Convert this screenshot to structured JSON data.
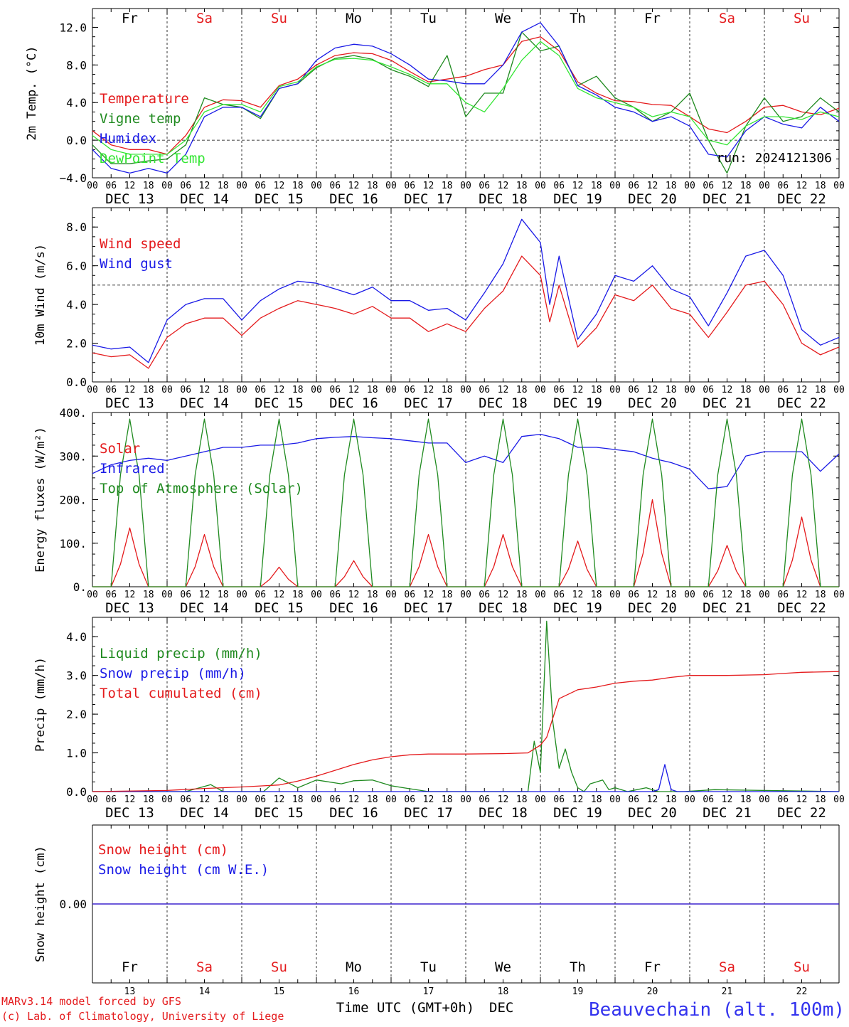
{
  "colors": {
    "red": "#e41a1c",
    "darkgreen": "#1f8a1f",
    "blue": "#1a1ae6",
    "lightgreen": "#33e633",
    "weekend": "#e41a1c",
    "weekday": "#000000",
    "footer_left": "#e41a1c",
    "footer_right": "#3333ee"
  },
  "days": {
    "top_labels": [
      "Fr",
      "Sa",
      "Su",
      "Mo",
      "Tu",
      "We",
      "Th",
      "Fr",
      "Sa",
      "Su"
    ],
    "weekend_flags": [
      false,
      true,
      true,
      false,
      false,
      false,
      false,
      false,
      true,
      true
    ],
    "date_labels": [
      "DEC 13",
      "DEC 14",
      "DEC 15",
      "DEC 16",
      "DEC 17",
      "DEC 18",
      "DEC 19",
      "DEC 20",
      "DEC 21",
      "DEC 22"
    ],
    "hour_labels": [
      "00",
      "06",
      "12",
      "18"
    ],
    "final_hour": "00",
    "day_numbers": [
      "13",
      "14",
      "15",
      "16",
      "17",
      "18",
      "19",
      "20",
      "21",
      "22"
    ]
  },
  "footer": {
    "model_line1": "MARv3.14 model forced by GFS",
    "model_line2": "(c) Lab. of Climatology, University of Liege",
    "xlabel": "Time UTC (GMT+0h)",
    "month": "DEC",
    "station": "Beauvechain (alt. 100m)"
  },
  "chart_data": [
    {
      "type": "line",
      "panel": "temperature",
      "ylabel": "2m Temp. (°C)",
      "ylim": [
        -4.0,
        14.0
      ],
      "yticks": [
        -4.0,
        0.0,
        4.0,
        8.0,
        12.0
      ],
      "ytick_labels": [
        "−4.0",
        "0.0",
        "4.0",
        "8.0",
        "12.0"
      ],
      "reference_line": 0.0,
      "annotation": "run: 2024121306",
      "x_unit": "hours since DEC 13 00 UTC",
      "series": [
        {
          "name": "Temperature",
          "color": "red",
          "x": [
            0,
            6,
            12,
            18,
            24,
            30,
            36,
            42,
            48,
            54,
            60,
            66,
            72,
            78,
            84,
            90,
            96,
            102,
            108,
            114,
            120,
            126,
            132,
            138,
            144,
            150,
            156,
            162,
            168,
            174,
            180,
            186,
            192,
            198,
            204,
            210,
            216,
            222,
            228,
            234,
            240
          ],
          "y": [
            1.0,
            -0.5,
            -1.0,
            -1.0,
            -1.5,
            0.5,
            3.5,
            4.3,
            4.2,
            3.5,
            5.8,
            6.5,
            8.0,
            9.0,
            9.3,
            9.2,
            8.5,
            7.3,
            6.2,
            6.5,
            6.8,
            7.5,
            8.0,
            10.5,
            11.0,
            9.5,
            6.2,
            5.0,
            4.2,
            4.1,
            3.8,
            3.7,
            2.5,
            1.2,
            0.8,
            2.0,
            3.5,
            3.7,
            3.0,
            2.7,
            3.4
          ]
        },
        {
          "name": "Vigne temp",
          "color": "darkgreen",
          "x": [
            0,
            6,
            12,
            18,
            24,
            30,
            36,
            42,
            48,
            54,
            60,
            66,
            72,
            78,
            84,
            90,
            96,
            102,
            108,
            114,
            120,
            126,
            132,
            138,
            144,
            150,
            156,
            162,
            168,
            174,
            180,
            186,
            192,
            198,
            204,
            210,
            216,
            222,
            228,
            234,
            240
          ],
          "y": [
            -0.5,
            -2.5,
            -2.5,
            -2.2,
            -2.0,
            -0.5,
            4.5,
            3.8,
            3.5,
            2.3,
            5.5,
            6.0,
            7.7,
            8.7,
            9.0,
            8.6,
            7.5,
            6.8,
            5.7,
            9.0,
            2.5,
            5.0,
            5.0,
            11.5,
            9.5,
            10.0,
            5.8,
            6.8,
            4.5,
            3.5,
            2.0,
            3.0,
            5.0,
            0.0,
            -3.5,
            1.5,
            4.5,
            2.0,
            2.5,
            4.5,
            3.0
          ]
        },
        {
          "name": "Humidex",
          "color": "blue",
          "x": [
            0,
            6,
            12,
            18,
            24,
            30,
            36,
            42,
            48,
            54,
            60,
            66,
            72,
            78,
            84,
            90,
            96,
            102,
            108,
            114,
            120,
            126,
            132,
            138,
            144,
            150,
            156,
            162,
            168,
            174,
            180,
            186,
            192,
            198,
            204,
            210,
            216,
            222,
            228,
            234,
            240
          ],
          "y": [
            -1.0,
            -3.0,
            -3.5,
            -3.0,
            -3.5,
            -1.5,
            2.5,
            3.5,
            3.5,
            2.5,
            5.5,
            6.0,
            8.5,
            9.8,
            10.2,
            10.0,
            9.2,
            8.0,
            6.5,
            6.3,
            6.0,
            6.0,
            8.0,
            11.5,
            12.5,
            10.0,
            5.8,
            4.8,
            3.5,
            3.0,
            2.0,
            2.5,
            1.5,
            -1.5,
            -1.8,
            1.0,
            2.5,
            1.7,
            1.3,
            3.5,
            2.0
          ]
        },
        {
          "name": "DewPoint Temp",
          "color": "lightgreen",
          "x": [
            0,
            6,
            12,
            18,
            24,
            30,
            36,
            42,
            48,
            54,
            60,
            66,
            72,
            78,
            84,
            90,
            96,
            102,
            108,
            114,
            120,
            126,
            132,
            138,
            144,
            150,
            156,
            162,
            168,
            174,
            180,
            186,
            192,
            198,
            204,
            210,
            216,
            222,
            228,
            234,
            240
          ],
          "y": [
            0.5,
            -1.0,
            -1.5,
            -1.5,
            -1.5,
            0.0,
            3.0,
            3.8,
            3.8,
            3.0,
            5.7,
            6.2,
            7.8,
            8.6,
            8.7,
            8.5,
            7.8,
            7.0,
            6.0,
            6.0,
            4.0,
            3.0,
            5.5,
            8.5,
            10.5,
            9.0,
            5.5,
            4.5,
            4.0,
            3.5,
            2.5,
            3.0,
            2.5,
            0.0,
            -0.5,
            1.5,
            2.5,
            2.5,
            2.2,
            3.0,
            2.5
          ]
        }
      ]
    },
    {
      "type": "line",
      "panel": "wind",
      "ylabel": "10m Wind (m/s)",
      "ylim": [
        0.0,
        9.0
      ],
      "yticks": [
        0.0,
        2.0,
        4.0,
        6.0,
        8.0
      ],
      "ytick_labels": [
        "0.0",
        "2.0",
        "4.0",
        "6.0",
        "8.0"
      ],
      "reference_line": 5.0,
      "series": [
        {
          "name": "Wind speed",
          "color": "red",
          "x": [
            0,
            6,
            12,
            18,
            24,
            30,
            36,
            42,
            48,
            54,
            60,
            66,
            72,
            78,
            84,
            90,
            96,
            102,
            108,
            114,
            120,
            126,
            132,
            138,
            144,
            147,
            150,
            156,
            162,
            168,
            174,
            180,
            186,
            192,
            198,
            204,
            210,
            216,
            222,
            228,
            234,
            240
          ],
          "y": [
            1.5,
            1.3,
            1.4,
            0.7,
            2.3,
            3.0,
            3.3,
            3.3,
            2.4,
            3.3,
            3.8,
            4.2,
            4.0,
            3.8,
            3.5,
            3.9,
            3.3,
            3.3,
            2.6,
            3.0,
            2.6,
            3.8,
            4.7,
            6.5,
            5.5,
            3.1,
            5.0,
            1.8,
            2.8,
            4.5,
            4.2,
            5.0,
            3.8,
            3.5,
            2.3,
            3.6,
            5.0,
            5.2,
            4.0,
            2.0,
            1.4,
            1.8
          ]
        },
        {
          "name": "Wind gust",
          "color": "blue",
          "x": [
            0,
            6,
            12,
            18,
            24,
            30,
            36,
            42,
            48,
            54,
            60,
            66,
            72,
            78,
            84,
            90,
            96,
            102,
            108,
            114,
            120,
            126,
            132,
            138,
            144,
            147,
            150,
            156,
            162,
            168,
            174,
            180,
            186,
            192,
            198,
            204,
            210,
            216,
            222,
            228,
            234,
            240
          ],
          "y": [
            1.9,
            1.7,
            1.8,
            1.0,
            3.2,
            4.0,
            4.3,
            4.3,
            3.2,
            4.2,
            4.8,
            5.2,
            5.1,
            4.8,
            4.5,
            4.9,
            4.2,
            4.2,
            3.7,
            3.8,
            3.2,
            4.6,
            6.1,
            8.4,
            7.2,
            4.0,
            6.5,
            2.2,
            3.5,
            5.5,
            5.2,
            6.0,
            4.8,
            4.4,
            2.9,
            4.6,
            6.5,
            6.8,
            5.5,
            2.7,
            1.9,
            2.3
          ]
        }
      ]
    },
    {
      "type": "line",
      "panel": "energy",
      "ylabel": "Energy fluxes (W/m²)",
      "ylim": [
        0,
        400
      ],
      "yticks": [
        0,
        100,
        200,
        300,
        400
      ],
      "ytick_labels": [
        "0.",
        "100.",
        "200.",
        "300.",
        "400."
      ],
      "series": [
        {
          "name": "Solar",
          "color": "red",
          "peak_hours": [
            12,
            36,
            60,
            84,
            108,
            132,
            156,
            180,
            204,
            228
          ],
          "peaks": [
            135,
            120,
            45,
            60,
            120,
            120,
            105,
            200,
            95,
            160
          ]
        },
        {
          "name": "Infrared",
          "color": "blue",
          "x": [
            0,
            6,
            12,
            18,
            24,
            30,
            36,
            42,
            48,
            54,
            60,
            66,
            72,
            78,
            84,
            90,
            96,
            102,
            108,
            114,
            120,
            126,
            132,
            138,
            144,
            150,
            156,
            162,
            168,
            174,
            180,
            186,
            192,
            198,
            204,
            210,
            216,
            222,
            228,
            234,
            240
          ],
          "y": [
            260,
            280,
            290,
            295,
            290,
            300,
            310,
            320,
            320,
            325,
            325,
            330,
            340,
            343,
            345,
            342,
            340,
            335,
            330,
            330,
            285,
            300,
            285,
            345,
            350,
            340,
            320,
            320,
            315,
            310,
            295,
            285,
            270,
            225,
            230,
            300,
            310,
            310,
            310,
            265,
            305
          ]
        },
        {
          "name": "Top of Atmosphere (Solar)",
          "color": "darkgreen",
          "peak_hours": [
            12,
            36,
            60,
            84,
            108,
            132,
            156,
            180,
            204,
            228
          ],
          "peaks": [
            385,
            385,
            385,
            385,
            385,
            385,
            385,
            385,
            385,
            385
          ]
        }
      ]
    },
    {
      "type": "line",
      "panel": "precip",
      "ylabel": "Precip (mm/h)",
      "ylim": [
        0.0,
        4.5
      ],
      "yticks": [
        0.0,
        1.0,
        2.0,
        3.0,
        4.0
      ],
      "ytick_labels": [
        "0.0",
        "1.0",
        "2.0",
        "3.0",
        "4.0"
      ],
      "series": [
        {
          "name": "Liquid precip (mm/h)",
          "color": "darkgreen",
          "x": [
            0,
            30,
            38,
            42,
            55,
            60,
            66,
            72,
            80,
            84,
            90,
            96,
            100,
            108,
            140,
            142,
            144,
            146,
            148,
            150,
            152,
            154,
            156,
            158,
            160,
            164,
            166,
            168,
            172,
            178,
            182,
            184,
            186,
            190,
            200,
            240
          ],
          "y": [
            0,
            0,
            0.18,
            0,
            0,
            0.35,
            0.1,
            0.3,
            0.2,
            0.28,
            0.3,
            0.15,
            0.1,
            0,
            0,
            1.3,
            0.5,
            4.4,
            1.8,
            0.6,
            1.1,
            0.5,
            0.1,
            0,
            0.2,
            0.3,
            0.05,
            0.1,
            0,
            0.1,
            0,
            0,
            0,
            0,
            0.05,
            0
          ]
        },
        {
          "name": "Snow precip (mm/h)",
          "color": "blue",
          "x": [
            0,
            180,
            182,
            184,
            186,
            188,
            240
          ],
          "y": [
            0,
            0,
            0.05,
            0.7,
            0.05,
            0,
            0
          ]
        },
        {
          "name": "Total cumulated (cm)",
          "color": "red",
          "x": [
            0,
            24,
            36,
            48,
            60,
            66,
            72,
            78,
            84,
            90,
            96,
            102,
            108,
            120,
            132,
            140,
            144,
            146,
            150,
            156,
            162,
            168,
            174,
            180,
            186,
            192,
            204,
            216,
            222,
            228,
            240
          ],
          "y": [
            0,
            0.03,
            0.08,
            0.12,
            0.17,
            0.27,
            0.4,
            0.55,
            0.7,
            0.82,
            0.9,
            0.95,
            0.97,
            0.97,
            0.98,
            1.0,
            1.2,
            1.4,
            2.4,
            2.63,
            2.7,
            2.8,
            2.85,
            2.88,
            2.95,
            3.0,
            3.0,
            3.02,
            3.05,
            3.08,
            3.1
          ]
        }
      ]
    },
    {
      "type": "line",
      "panel": "snow",
      "ylabel": "Snow height (cm)",
      "ylim": [
        -1.0,
        1.0
      ],
      "yticks": [
        0.0
      ],
      "ytick_labels": [
        "0.00"
      ],
      "series": [
        {
          "name": "Snow height (cm)",
          "color": "red",
          "x": [
            0,
            240
          ],
          "y": [
            0.0,
            0.0
          ]
        },
        {
          "name": "Snow height (cm W.E.)",
          "color": "blue",
          "x": [
            0,
            240
          ],
          "y": [
            0.0,
            0.0
          ]
        }
      ]
    }
  ]
}
